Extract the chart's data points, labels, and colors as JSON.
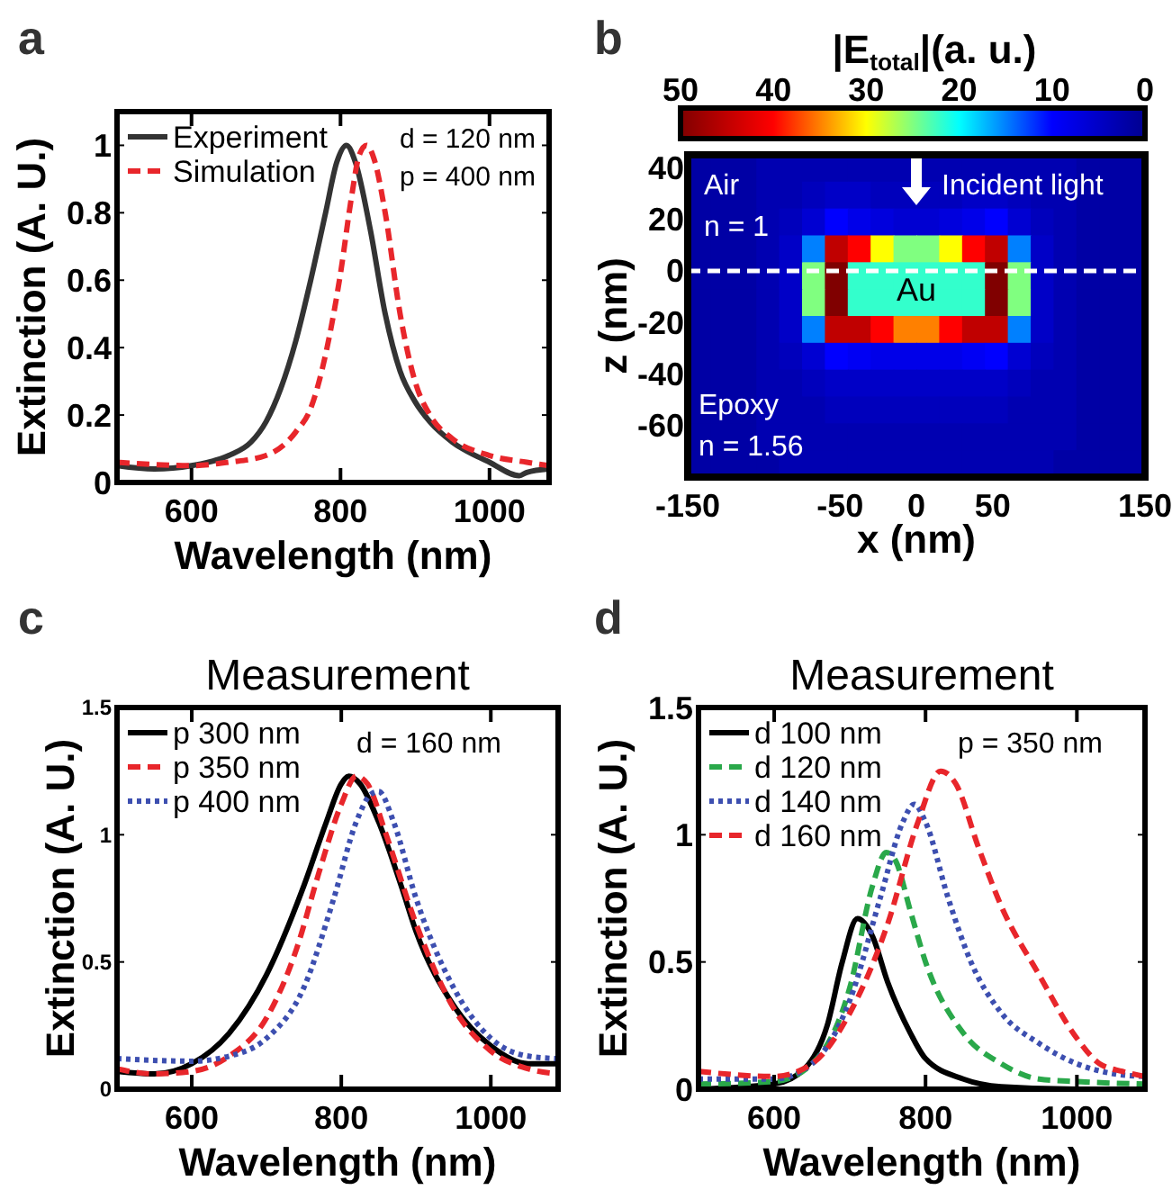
{
  "chart_data": [
    {
      "type": "line",
      "xlabel": "Wavelength (nm)",
      "ylabel": "Extinction (A. U.)",
      "xlim": [
        500,
        1080
      ],
      "ylim": [
        0,
        1.1
      ],
      "xticks": [
        600,
        800,
        1000
      ],
      "yticks": [
        0,
        0.2,
        0.4,
        0.6,
        0.8,
        1
      ],
      "legend": "top left",
      "annotations": [
        "a",
        "d = 120 nm",
        "p = 400 nm"
      ],
      "series": [
        {
          "name": "Experiment",
          "color": "#333333",
          "line_style": "solid",
          "x": [
            500,
            550,
            600,
            650,
            680,
            700,
            720,
            740,
            760,
            780,
            795,
            808,
            820,
            840,
            860,
            880,
            900,
            920,
            950,
            1000,
            1040,
            1050,
            1080
          ],
          "values": [
            0.05,
            0.04,
            0.05,
            0.08,
            0.12,
            0.18,
            0.28,
            0.42,
            0.6,
            0.8,
            0.95,
            1.0,
            0.95,
            0.75,
            0.5,
            0.33,
            0.24,
            0.18,
            0.12,
            0.06,
            0.02,
            0.03,
            0.04
          ]
        },
        {
          "name": "Simulation",
          "color": "#e8262b",
          "line_style": "dashed",
          "x": [
            500,
            600,
            650,
            700,
            740,
            760,
            780,
            800,
            815,
            825,
            835,
            845,
            860,
            880,
            900,
            920,
            950,
            1000,
            1050,
            1080
          ],
          "values": [
            0.06,
            0.05,
            0.06,
            0.08,
            0.15,
            0.22,
            0.38,
            0.62,
            0.85,
            0.97,
            1.0,
            0.96,
            0.8,
            0.5,
            0.3,
            0.2,
            0.13,
            0.08,
            0.06,
            0.05
          ]
        }
      ]
    },
    {
      "type": "heatmap",
      "xlabel": "x (nm)",
      "ylabel": "z (nm)",
      "clabel": "|E$_{total}$|(a. u.)",
      "xlim": [
        -150,
        150
      ],
      "ylim": [
        -80,
        45
      ],
      "xticks": [
        -150,
        -50,
        0,
        50,
        150
      ],
      "yticks": [
        40,
        20,
        0,
        -20,
        -40,
        -60
      ],
      "clim": [
        50,
        0
      ],
      "cticks": [
        50,
        40,
        30,
        20,
        10,
        0
      ],
      "ref_lines": [
        {
          "axis": "y",
          "value": 0,
          "color": "#ffffff",
          "line_style": "dashed"
        }
      ],
      "annotations": [
        "b",
        "Air",
        "n = 1",
        "Incident light",
        "Epoxy",
        "n = 1.56",
        "Au"
      ],
      "x": [
        -142.5,
        -127.5,
        -112.5,
        -97.5,
        -82.5,
        -67.5,
        -52.5,
        -37.5,
        -22.5,
        -7.5,
        7.5,
        22.5,
        37.5,
        52.5,
        67.5,
        82.5,
        97.5,
        112.5,
        127.5,
        142.5
      ],
      "cells": [
        [
          2,
          2,
          2,
          3,
          3,
          3,
          3,
          3,
          3,
          3,
          3,
          3,
          3,
          3,
          3,
          3,
          3,
          2,
          2,
          2
        ],
        [
          2,
          2,
          2,
          3,
          3,
          4,
          5,
          5,
          4,
          4,
          4,
          4,
          5,
          5,
          4,
          3,
          3,
          2,
          2,
          2
        ],
        [
          2,
          2,
          2,
          3,
          4,
          6,
          10,
          8,
          7,
          6,
          6,
          7,
          8,
          10,
          6,
          4,
          3,
          2,
          2,
          2
        ],
        [
          2,
          2,
          2,
          3,
          5,
          15,
          45,
          40,
          30,
          25,
          25,
          30,
          40,
          45,
          15,
          5,
          3,
          2,
          2,
          2
        ],
        [
          2,
          2,
          2,
          3,
          5,
          25,
          50,
          22,
          22,
          22,
          22,
          22,
          22,
          50,
          25,
          5,
          3,
          2,
          2,
          2
        ],
        [
          2,
          2,
          2,
          3,
          5,
          25,
          50,
          22,
          22,
          22,
          22,
          22,
          22,
          50,
          25,
          5,
          3,
          2,
          2,
          2
        ],
        [
          2,
          2,
          2,
          3,
          5,
          15,
          45,
          45,
          40,
          35,
          35,
          40,
          45,
          45,
          15,
          5,
          3,
          2,
          2,
          2
        ],
        [
          2,
          2,
          2,
          3,
          4,
          6,
          10,
          9,
          8,
          8,
          8,
          8,
          9,
          10,
          6,
          4,
          3,
          2,
          2,
          2
        ],
        [
          2,
          2,
          2,
          3,
          3,
          4,
          5,
          5,
          5,
          5,
          5,
          5,
          5,
          5,
          4,
          3,
          3,
          2,
          2,
          2
        ],
        [
          2,
          2,
          2,
          3,
          3,
          3,
          4,
          4,
          4,
          4,
          4,
          4,
          4,
          4,
          3,
          3,
          3,
          2,
          2,
          2
        ],
        [
          2,
          2,
          2,
          3,
          3,
          3,
          3,
          3,
          3,
          3,
          3,
          3,
          3,
          3,
          3,
          3,
          3,
          2,
          2,
          2
        ],
        [
          2,
          2,
          2,
          2,
          3,
          3,
          3,
          3,
          3,
          3,
          3,
          3,
          3,
          3,
          3,
          3,
          2,
          2,
          2,
          2
        ]
      ]
    },
    {
      "type": "line",
      "title": "Measurement",
      "xlabel": "Wavelength (nm)",
      "ylabel": "Extinction (A. U.)",
      "xlim": [
        500,
        1090
      ],
      "ylim": [
        0,
        1.5
      ],
      "xticks": [
        600,
        800,
        1000
      ],
      "yticks": [
        0,
        0.5,
        1,
        1.5
      ],
      "legend": "top left",
      "annotations": [
        "c",
        "d = 160 nm"
      ],
      "series": [
        {
          "name": "p 300 nm",
          "color": "#000000",
          "line_style": "solid",
          "x": [
            500,
            550,
            600,
            650,
            700,
            750,
            780,
            800,
            810,
            825,
            850,
            880,
            900,
            950,
            1000,
            1050,
            1090
          ],
          "values": [
            0.07,
            0.06,
            0.1,
            0.22,
            0.45,
            0.8,
            1.05,
            1.2,
            1.23,
            1.2,
            1.05,
            0.8,
            0.62,
            0.33,
            0.17,
            0.1,
            0.1
          ]
        },
        {
          "name": "p 350 nm",
          "color": "#e8262b",
          "line_style": "dashed",
          "x": [
            500,
            550,
            600,
            650,
            700,
            740,
            770,
            800,
            820,
            835,
            860,
            900,
            950,
            1000,
            1050,
            1090
          ],
          "values": [
            0.08,
            0.06,
            0.07,
            0.13,
            0.28,
            0.55,
            0.85,
            1.12,
            1.23,
            1.2,
            1.0,
            0.65,
            0.32,
            0.15,
            0.08,
            0.06
          ]
        },
        {
          "name": "p 400 nm",
          "color": "#3d4fb0",
          "line_style": "dotted",
          "x": [
            500,
            600,
            650,
            700,
            750,
            790,
            820,
            840,
            850,
            870,
            900,
            950,
            1000,
            1050,
            1090
          ],
          "values": [
            0.12,
            0.11,
            0.13,
            0.2,
            0.4,
            0.75,
            1.05,
            1.16,
            1.17,
            1.05,
            0.75,
            0.4,
            0.2,
            0.13,
            0.12
          ]
        }
      ]
    },
    {
      "type": "line",
      "title": "Measurement",
      "xlabel": "Wavelength (nm)",
      "ylabel": "Extinction (A. U.)",
      "xlim": [
        500,
        1090
      ],
      "ylim": [
        0,
        1.5
      ],
      "xticks": [
        600,
        800,
        1000
      ],
      "yticks": [
        0,
        0.5,
        1,
        1.5
      ],
      "legend": "top left",
      "annotations": [
        "d",
        "p = 350 nm"
      ],
      "series": [
        {
          "name": "d 100 nm",
          "color": "#000000",
          "line_style": "solid",
          "x": [
            500,
            600,
            640,
            670,
            690,
            710,
            730,
            750,
            780,
            800,
            850,
            900,
            1000,
            1090
          ],
          "values": [
            0,
            0.02,
            0.08,
            0.25,
            0.5,
            0.67,
            0.6,
            0.42,
            0.22,
            0.12,
            0.04,
            0.01,
            0,
            0
          ]
        },
        {
          "name": "d 120 nm",
          "color": "#2aa84a",
          "line_style": "dashed",
          "x": [
            500,
            600,
            650,
            700,
            730,
            748,
            760,
            780,
            800,
            850,
            900,
            950,
            1000,
            1090
          ],
          "values": [
            0.02,
            0.03,
            0.1,
            0.4,
            0.8,
            0.93,
            0.9,
            0.7,
            0.5,
            0.22,
            0.1,
            0.04,
            0.03,
            0.02
          ]
        },
        {
          "name": "d 140 nm",
          "color": "#3d4fb0",
          "line_style": "dotted",
          "x": [
            500,
            600,
            650,
            700,
            740,
            770,
            785,
            800,
            830,
            860,
            900,
            950,
            1000,
            1050,
            1090
          ],
          "values": [
            0.04,
            0.04,
            0.1,
            0.35,
            0.75,
            1.05,
            1.12,
            1.05,
            0.75,
            0.5,
            0.3,
            0.18,
            0.1,
            0.06,
            0.05
          ]
        },
        {
          "name": "d 160 nm",
          "color": "#e8262b",
          "line_style": "dashed",
          "x": [
            500,
            600,
            650,
            700,
            750,
            790,
            820,
            840,
            870,
            900,
            950,
            1000,
            1030,
            1060,
            1090
          ],
          "values": [
            0.07,
            0.05,
            0.1,
            0.3,
            0.65,
            1.05,
            1.25,
            1.2,
            0.95,
            0.72,
            0.45,
            0.2,
            0.1,
            0.07,
            0.05
          ]
        }
      ]
    }
  ]
}
